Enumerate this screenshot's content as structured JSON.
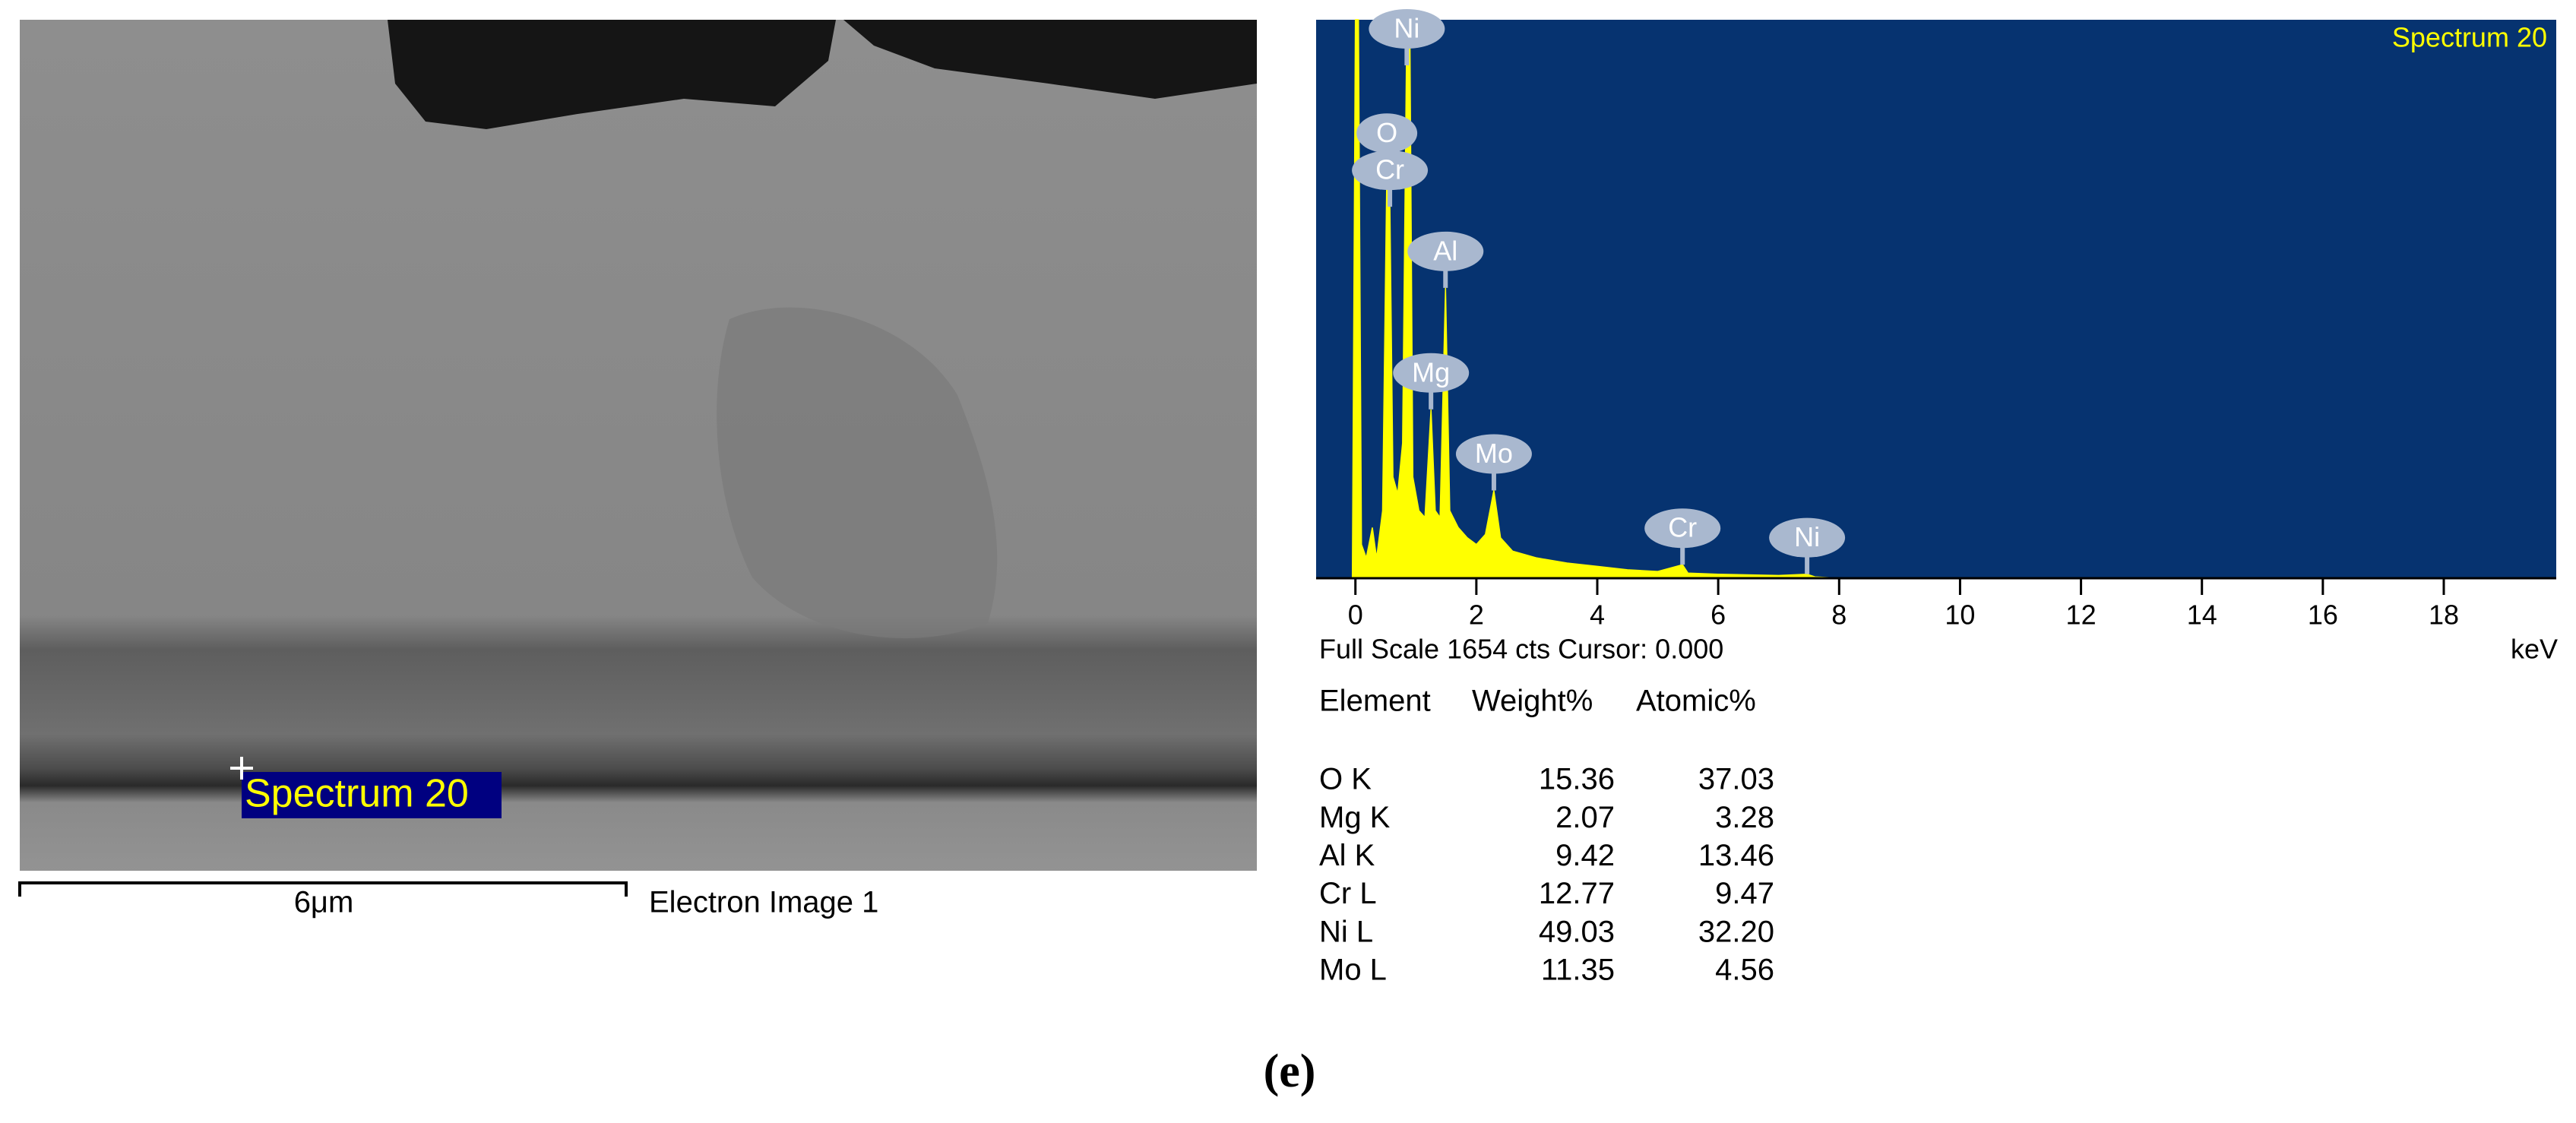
{
  "image": {
    "spectrum_label": "Spectrum 20",
    "scale_bar_label": "6μm",
    "caption": "Electron Image 1"
  },
  "chart_data": {
    "type": "area",
    "title": "Spectrum 20",
    "x_label": "keV",
    "color": "#ffff00",
    "background": "#063370",
    "xlim": [
      -0.65,
      19.86
    ],
    "ylim": [
      0,
      1654
    ],
    "xticks": [
      0,
      2,
      4,
      6,
      8,
      10,
      12,
      14,
      16,
      18
    ],
    "x": [
      -0.65,
      -0.05,
      0,
      0.05,
      0.1,
      0.18,
      0.28,
      0.35,
      0.45,
      0.52,
      0.57,
      0.62,
      0.7,
      0.78,
      0.85,
      0.9,
      0.95,
      1.05,
      1.15,
      1.25,
      1.32,
      1.4,
      1.49,
      1.56,
      1.7,
      1.85,
      2.0,
      2.15,
      2.29,
      2.4,
      2.6,
      3.0,
      3.5,
      4.0,
      4.5,
      5.0,
      5.41,
      5.5,
      6.0,
      7.0,
      7.47,
      7.6,
      8.0,
      19.86
    ],
    "values": [
      0,
      0,
      1654,
      1654,
      100,
      60,
      150,
      60,
      200,
      1210,
      1100,
      300,
      250,
      400,
      1654,
      1654,
      300,
      200,
      180,
      500,
      200,
      180,
      860,
      200,
      150,
      120,
      100,
      130,
      260,
      120,
      80,
      60,
      45,
      35,
      25,
      20,
      40,
      15,
      12,
      8,
      12,
      4,
      0,
      0
    ],
    "annotations": [
      {
        "label": "Ni",
        "x": 0.85
      },
      {
        "label": "O",
        "x": 0.52
      },
      {
        "label": "Cr",
        "x": 0.57
      },
      {
        "label": "Al",
        "x": 1.49
      },
      {
        "label": "Mg",
        "x": 1.25
      },
      {
        "label": "Mo",
        "x": 2.29
      },
      {
        "label": "Cr",
        "x": 5.41
      },
      {
        "label": "Ni",
        "x": 7.47
      }
    ]
  },
  "info": "Full Scale 1654 cts Cursor: 0.000",
  "table": {
    "header": [
      "Element",
      "Weight%",
      "Atomic%"
    ],
    "rows": [
      [
        "O K",
        "15.36",
        "37.03"
      ],
      [
        "Mg K",
        "2.07",
        "3.28"
      ],
      [
        "Al K",
        "9.42",
        "13.46"
      ],
      [
        "Cr L",
        "12.77",
        "9.47"
      ],
      [
        "Ni L",
        "49.03",
        "32.20"
      ],
      [
        "Mo L",
        "11.35",
        "4.56"
      ]
    ]
  },
  "figure_label": "(e)"
}
